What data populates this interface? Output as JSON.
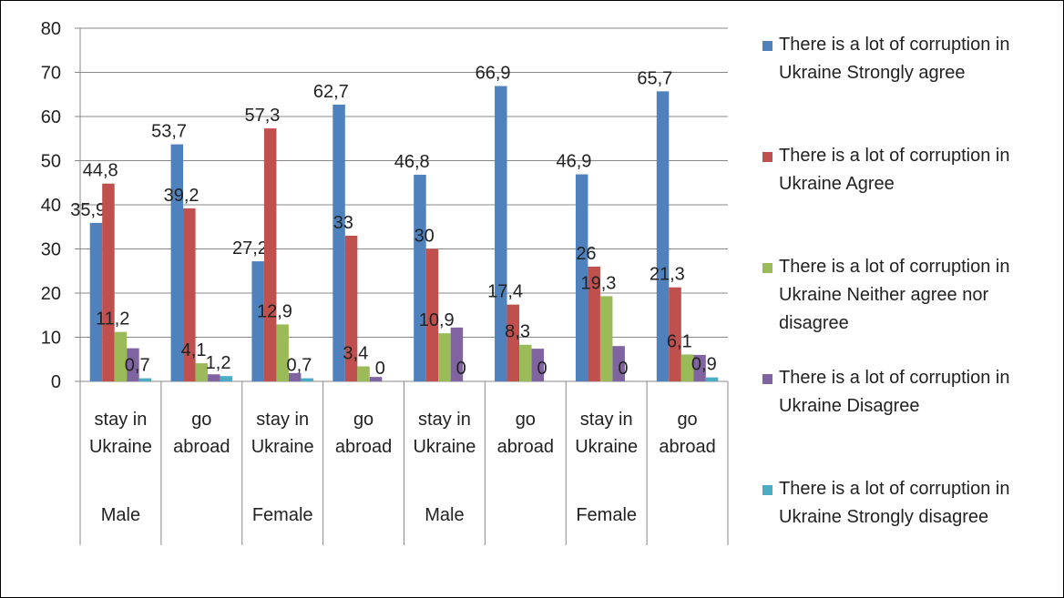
{
  "chart_data": {
    "type": "bar",
    "categories": [
      "stay in Ukraine",
      "go abroad",
      "stay in Ukraine",
      "go abroad",
      "stay in Ukraine",
      "go abroad",
      "stay in Ukraine",
      "go abroad"
    ],
    "category_groups": [
      "Male",
      null,
      "Female",
      null,
      "Male",
      null,
      "Female",
      null
    ],
    "ylim": [
      0,
      80
    ],
    "yticks": [
      0,
      10,
      20,
      30,
      40,
      50,
      60,
      70,
      80
    ],
    "grid": true,
    "legend": "right",
    "series": [
      {
        "name": "There is a lot of corruption in Ukraine  Strongly agree",
        "color": "#4f81bd",
        "values": [
          35.9,
          53.7,
          27.2,
          62.7,
          46.8,
          66.9,
          46.9,
          65.7
        ],
        "value_labels": [
          "35,9",
          "53,7",
          "27,2",
          "62,7",
          "46,8",
          "66,9",
          "46,9",
          "65,7"
        ]
      },
      {
        "name": "There is a lot of corruption in Ukraine  Agree",
        "color": "#c0504d",
        "values": [
          44.8,
          39.2,
          57.3,
          33,
          30,
          17.4,
          26,
          21.3
        ],
        "value_labels": [
          "44,8",
          "39,2",
          "57,3",
          "33",
          "30",
          "17,4",
          "26",
          "21,3"
        ]
      },
      {
        "name": "There is a lot of corruption in Ukraine  Neither agree nor disagree",
        "color": "#9bbb59",
        "values": [
          11.2,
          4.1,
          12.9,
          3.4,
          10.9,
          8.3,
          19.3,
          6.1
        ],
        "value_labels": [
          "11,2",
          "4,1",
          "12,9",
          "3,4",
          "10,9",
          "8,3",
          "19,3",
          "6,1"
        ]
      },
      {
        "name": "There is a lot of corruption in Ukraine  Disagree",
        "color": "#8064a2",
        "values": [
          7.5,
          1.6,
          1.9,
          1,
          12.2,
          7.4,
          8,
          6
        ]
      },
      {
        "name": "There is a lot of corruption in Ukraine  Strongly disagree",
        "color": "#4bacc6",
        "values": [
          0.7,
          1.2,
          0.7,
          0,
          0,
          0,
          0,
          0.9
        ],
        "value_labels": [
          "0,7",
          "1,2",
          "0,7",
          "0",
          "0",
          "0",
          "0",
          "0,9"
        ]
      }
    ]
  }
}
